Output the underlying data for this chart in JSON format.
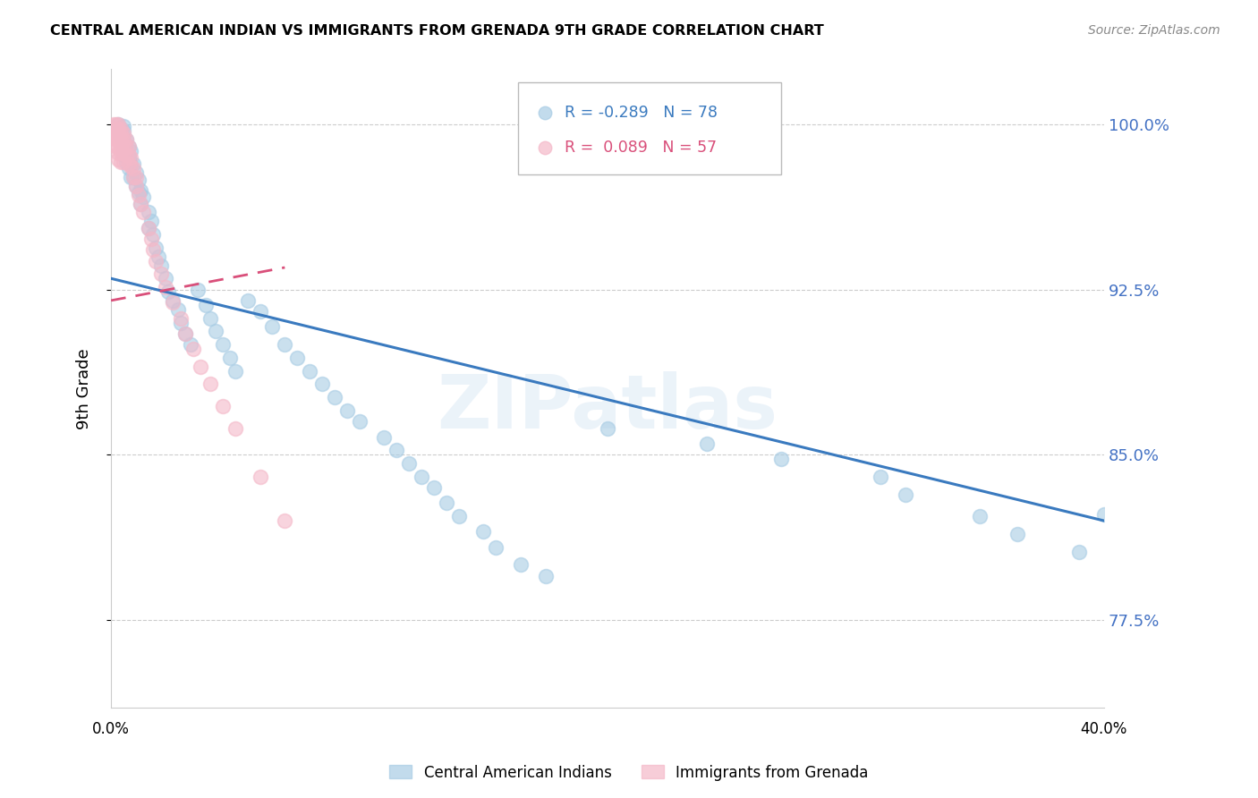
{
  "title": "CENTRAL AMERICAN INDIAN VS IMMIGRANTS FROM GRENADA 9TH GRADE CORRELATION CHART",
  "source": "Source: ZipAtlas.com",
  "ylabel": "9th Grade",
  "yticks": [
    0.775,
    0.85,
    0.925,
    1.0
  ],
  "ytick_labels": [
    "77.5%",
    "85.0%",
    "92.5%",
    "100.0%"
  ],
  "xlim": [
    0.0,
    0.4
  ],
  "ylim": [
    0.735,
    1.025
  ],
  "legend_blue_label": "Central American Indians",
  "legend_pink_label": "Immigrants from Grenada",
  "R_blue": -0.289,
  "N_blue": 78,
  "R_pink": 0.089,
  "N_pink": 57,
  "blue_color": "#a8cce4",
  "pink_color": "#f4b8c8",
  "blue_line_color": "#3a7abf",
  "pink_line_color": "#d94f7a",
  "watermark": "ZIPatlas",
  "blue_line_x0": 0.0,
  "blue_line_y0": 0.93,
  "blue_line_x1": 0.4,
  "blue_line_y1": 0.82,
  "pink_line_x0": 0.0,
  "pink_line_y0": 0.92,
  "pink_line_x1": 0.07,
  "pink_line_y1": 0.935,
  "blue_points_x": [
    0.003,
    0.003,
    0.004,
    0.004,
    0.005,
    0.005,
    0.005,
    0.005,
    0.005,
    0.006,
    0.006,
    0.006,
    0.007,
    0.007,
    0.007,
    0.008,
    0.008,
    0.008,
    0.009,
    0.009,
    0.01,
    0.01,
    0.011,
    0.011,
    0.012,
    0.012,
    0.013,
    0.015,
    0.015,
    0.016,
    0.017,
    0.018,
    0.019,
    0.02,
    0.022,
    0.023,
    0.025,
    0.027,
    0.028,
    0.03,
    0.032,
    0.035,
    0.038,
    0.04,
    0.042,
    0.045,
    0.048,
    0.05,
    0.055,
    0.06,
    0.065,
    0.07,
    0.075,
    0.08,
    0.085,
    0.09,
    0.095,
    0.1,
    0.11,
    0.115,
    0.12,
    0.125,
    0.13,
    0.135,
    0.14,
    0.15,
    0.155,
    0.165,
    0.175,
    0.2,
    0.24,
    0.27,
    0.31,
    0.32,
    0.35,
    0.365,
    0.39,
    0.4
  ],
  "blue_points_y": [
    1.0,
    0.997,
    0.998,
    0.994,
    0.999,
    0.997,
    0.994,
    0.99,
    0.986,
    0.993,
    0.988,
    0.983,
    0.99,
    0.985,
    0.98,
    0.988,
    0.982,
    0.976,
    0.982,
    0.976,
    0.978,
    0.972,
    0.975,
    0.969,
    0.97,
    0.964,
    0.967,
    0.96,
    0.953,
    0.956,
    0.95,
    0.944,
    0.94,
    0.936,
    0.93,
    0.924,
    0.92,
    0.916,
    0.91,
    0.905,
    0.9,
    0.925,
    0.918,
    0.912,
    0.906,
    0.9,
    0.894,
    0.888,
    0.92,
    0.915,
    0.908,
    0.9,
    0.894,
    0.888,
    0.882,
    0.876,
    0.87,
    0.865,
    0.858,
    0.852,
    0.846,
    0.84,
    0.835,
    0.828,
    0.822,
    0.815,
    0.808,
    0.8,
    0.795,
    0.862,
    0.855,
    0.848,
    0.84,
    0.832,
    0.822,
    0.814,
    0.806,
    0.823
  ],
  "pink_points_x": [
    0.001,
    0.001,
    0.001,
    0.002,
    0.002,
    0.002,
    0.002,
    0.002,
    0.003,
    0.003,
    0.003,
    0.003,
    0.003,
    0.003,
    0.003,
    0.004,
    0.004,
    0.004,
    0.004,
    0.004,
    0.004,
    0.005,
    0.005,
    0.005,
    0.005,
    0.005,
    0.006,
    0.006,
    0.006,
    0.007,
    0.007,
    0.007,
    0.008,
    0.008,
    0.009,
    0.009,
    0.01,
    0.01,
    0.011,
    0.012,
    0.013,
    0.015,
    0.016,
    0.017,
    0.018,
    0.02,
    0.022,
    0.025,
    0.028,
    0.03,
    0.033,
    0.036,
    0.04,
    0.045,
    0.05,
    0.06,
    0.07
  ],
  "pink_points_y": [
    1.0,
    0.998,
    0.994,
    1.0,
    0.998,
    0.996,
    0.993,
    0.99,
    1.0,
    0.998,
    0.996,
    0.993,
    0.99,
    0.987,
    0.984,
    0.998,
    0.996,
    0.993,
    0.99,
    0.987,
    0.983,
    0.996,
    0.993,
    0.99,
    0.987,
    0.983,
    0.993,
    0.99,
    0.986,
    0.99,
    0.986,
    0.982,
    0.985,
    0.981,
    0.98,
    0.976,
    0.976,
    0.972,
    0.968,
    0.964,
    0.96,
    0.953,
    0.948,
    0.943,
    0.938,
    0.932,
    0.926,
    0.919,
    0.912,
    0.905,
    0.898,
    0.89,
    0.882,
    0.872,
    0.862,
    0.84,
    0.82
  ]
}
